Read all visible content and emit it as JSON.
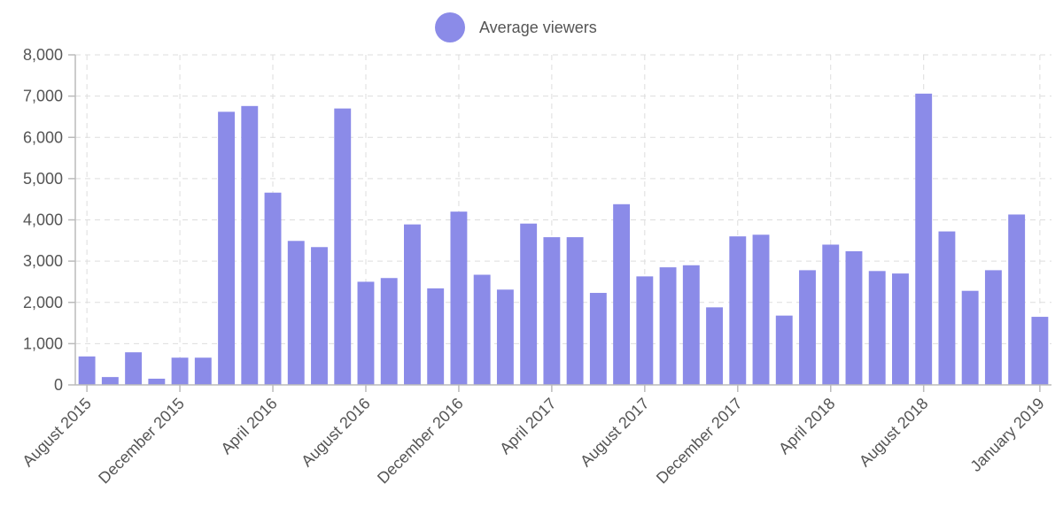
{
  "chart_data": {
    "type": "bar",
    "title": "",
    "xlabel": "",
    "ylabel": "",
    "ylim": [
      0,
      8000
    ],
    "yticks": [
      "0",
      "1,000",
      "2,000",
      "3,000",
      "4,000",
      "5,000",
      "6,000",
      "7,000",
      "8,000"
    ],
    "grid": true,
    "legend_position": "top-center",
    "series": [
      {
        "name": "Average viewers",
        "color": "#8b8be8",
        "values": [
          690,
          190,
          790,
          150,
          660,
          660,
          6620,
          6760,
          4660,
          3490,
          3340,
          6700,
          2500,
          2590,
          3890,
          2340,
          4200,
          2670,
          2310,
          3910,
          3580,
          3580,
          2230,
          4380,
          2630,
          2850,
          2900,
          1880,
          3600,
          3640,
          1680,
          2780,
          3400,
          3240,
          2760,
          2700,
          7060,
          3720,
          2280,
          2780,
          4130,
          1650
        ]
      }
    ],
    "x_tick_labels": [
      {
        "label": "August 2015",
        "index": 0
      },
      {
        "label": "December 2015",
        "index": 4
      },
      {
        "label": "April 2016",
        "index": 8
      },
      {
        "label": "August 2016",
        "index": 12
      },
      {
        "label": "December 2016",
        "index": 16
      },
      {
        "label": "April 2017",
        "index": 20
      },
      {
        "label": "August 2017",
        "index": 24
      },
      {
        "label": "December 2017",
        "index": 28
      },
      {
        "label": "April 2018",
        "index": 32
      },
      {
        "label": "August 2018",
        "index": 36
      },
      {
        "label": "January 2019",
        "index": 41
      }
    ]
  }
}
